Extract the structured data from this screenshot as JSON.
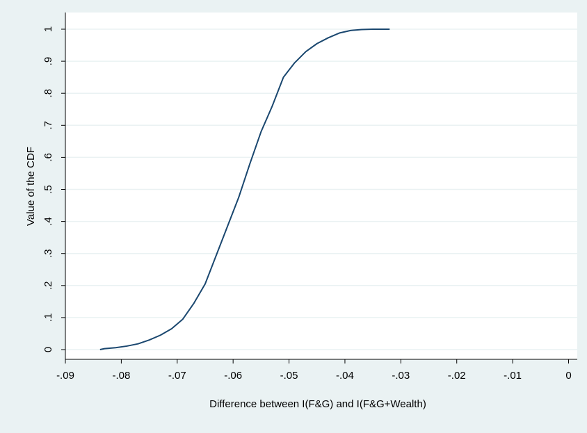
{
  "chart_data": {
    "type": "line",
    "title": "",
    "xlabel": "Difference between I(F&G) and I(F&G+Wealth)",
    "ylabel": "Value of the CDF",
    "xlim": [
      -0.09,
      0
    ],
    "ylim": [
      0,
      1
    ],
    "x_ticks": [
      -0.09,
      -0.08,
      -0.07,
      -0.06,
      -0.05,
      -0.04,
      -0.03,
      -0.02,
      -0.01,
      0
    ],
    "x_tick_labels": [
      "-.09",
      "-.08",
      "-.07",
      "-.06",
      "-.05",
      "-.04",
      "-.03",
      "-.02",
      "-.01",
      "0"
    ],
    "y_ticks": [
      0,
      0.1,
      0.2,
      0.3,
      0.4,
      0.5,
      0.6,
      0.7,
      0.8,
      0.9,
      1
    ],
    "y_tick_labels": [
      "0",
      ".1",
      ".2",
      ".3",
      ".4",
      ".5",
      ".6",
      ".7",
      ".8",
      ".9",
      "1"
    ],
    "grid": "horizontal",
    "colors": {
      "line": "#1a476f",
      "background": "#eaf2f3",
      "plot_area": "#ffffff",
      "grid": "#eaf2f3"
    },
    "series": [
      {
        "x": [
          -0.0838,
          -0.083,
          -0.081,
          -0.079,
          -0.077,
          -0.075,
          -0.073,
          -0.071,
          -0.069,
          -0.067,
          -0.065,
          -0.063,
          -0.061,
          -0.059,
          -0.057,
          -0.055,
          -0.053,
          -0.051,
          -0.049,
          -0.047,
          -0.045,
          -0.043,
          -0.041,
          -0.039,
          -0.037,
          -0.035,
          -0.032
        ],
        "y": [
          0.0,
          0.003,
          0.006,
          0.011,
          0.018,
          0.03,
          0.045,
          0.065,
          0.095,
          0.145,
          0.205,
          0.295,
          0.385,
          0.475,
          0.58,
          0.68,
          0.76,
          0.85,
          0.895,
          0.93,
          0.955,
          0.973,
          0.988,
          0.996,
          0.999,
          1.0,
          1.0
        ]
      }
    ]
  }
}
